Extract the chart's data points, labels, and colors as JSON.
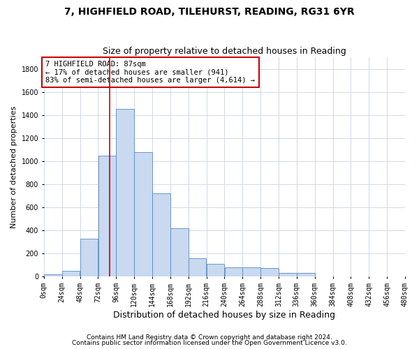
{
  "title_line1": "7, HIGHFIELD ROAD, TILEHURST, READING, RG31 6YR",
  "title_line2": "Size of property relative to detached houses in Reading",
  "xlabel": "Distribution of detached houses by size in Reading",
  "ylabel": "Number of detached properties",
  "footnote1": "Contains HM Land Registry data © Crown copyright and database right 2024.",
  "footnote2": "Contains public sector information licensed under the Open Government Licence v3.0.",
  "annotation_line1": "7 HIGHFIELD ROAD: 87sqm",
  "annotation_line2": "← 17% of detached houses are smaller (941)",
  "annotation_line3": "83% of semi-detached houses are larger (4,614) →",
  "property_size": 87,
  "bin_edges": [
    0,
    24,
    48,
    72,
    96,
    120,
    144,
    168,
    192,
    216,
    240,
    264,
    288,
    312,
    336,
    360,
    384,
    408,
    432,
    456,
    480
  ],
  "bar_values": [
    20,
    50,
    330,
    1050,
    1450,
    1080,
    720,
    420,
    160,
    110,
    80,
    80,
    70,
    30,
    30,
    0,
    0,
    0,
    0,
    0
  ],
  "bar_color": "#c9d9f0",
  "bar_edge_color": "#5a8ac6",
  "vline_color": "#cc0000",
  "vline_x": 87,
  "ylim": [
    0,
    1900
  ],
  "yticks": [
    0,
    200,
    400,
    600,
    800,
    1000,
    1200,
    1400,
    1600,
    1800
  ],
  "background_color": "#ffffff",
  "grid_color": "#d0d8e8",
  "annotation_box_color": "#ffffff",
  "annotation_box_edge": "#cc0000",
  "title_fontsize": 10,
  "subtitle_fontsize": 9,
  "xlabel_fontsize": 9,
  "ylabel_fontsize": 8,
  "tick_fontsize": 7,
  "annotation_fontsize": 7.5,
  "footnote_fontsize": 6.5
}
